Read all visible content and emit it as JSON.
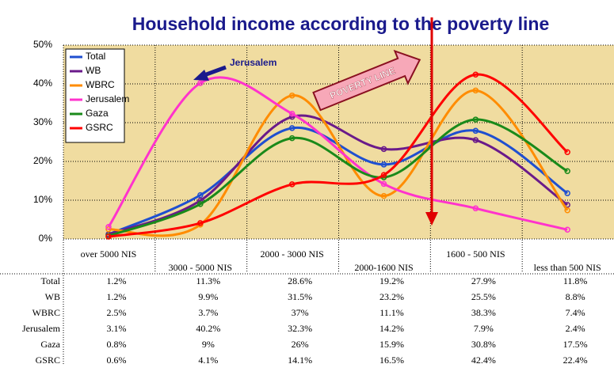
{
  "chart_data": {
    "type": "line",
    "title": "Household income according to the poverty line",
    "categories": [
      "over 5000 NIS",
      "3000 - 5000 NIS",
      "2000 - 3000 NIS",
      "2000-1600 NIS",
      "1600 - 500 NIS",
      "less than 500 NIS"
    ],
    "series": [
      {
        "name": "Total",
        "color": "#1f4fd0",
        "values": [
          1.2,
          11.3,
          28.6,
          19.2,
          27.9,
          11.8
        ],
        "value_labels": [
          "1.2%",
          "11.3%",
          "28.6%",
          "19.2%",
          "27.9%",
          "11.8%"
        ]
      },
      {
        "name": "WB",
        "color": "#6a1a8a",
        "values": [
          1.2,
          9.9,
          31.5,
          23.2,
          25.5,
          8.8
        ],
        "value_labels": [
          "1.2%",
          "9.9%",
          "31.5%",
          "23.2%",
          "25.5%",
          "8.8%"
        ]
      },
      {
        "name": "WBRC",
        "color": "#ff8c00",
        "values": [
          2.5,
          3.7,
          37,
          11.1,
          38.3,
          7.4
        ],
        "value_labels": [
          "2.5%",
          "3.7%",
          "37%",
          "11.1%",
          "38.3%",
          "7.4%"
        ]
      },
      {
        "name": "Jerusalem",
        "color": "#ff33cc",
        "values": [
          3.1,
          40.2,
          32.3,
          14.2,
          7.9,
          2.4
        ],
        "value_labels": [
          "3.1%",
          "40.2%",
          "32.3%",
          "14.2%",
          "7.9%",
          "2.4%"
        ]
      },
      {
        "name": "Gaza",
        "color": "#1a8a1a",
        "values": [
          0.8,
          9,
          26,
          15.9,
          30.8,
          17.5
        ],
        "value_labels": [
          "0.8%",
          "9%",
          "26%",
          "15.9%",
          "30.8%",
          "17.5%"
        ]
      },
      {
        "name": "GSRC",
        "color": "#ff0000",
        "values": [
          0.6,
          4.1,
          14.1,
          16.5,
          42.4,
          22.4
        ],
        "value_labels": [
          "0.6%",
          "4.1%",
          "14.1%",
          "16.5%",
          "42.4%",
          "22.4%"
        ]
      }
    ],
    "ylim": [
      0,
      50
    ],
    "yticks": [
      {
        "value": 0,
        "label": "0%"
      },
      {
        "value": 10,
        "label": "10%"
      },
      {
        "value": 20,
        "label": "20%"
      },
      {
        "value": 30,
        "label": "30%"
      },
      {
        "value": 40,
        "label": "40%"
      },
      {
        "value": 50,
        "label": "50%"
      }
    ],
    "grid": true,
    "legend": "upper left",
    "annotations": [
      "Jerusalem",
      "POVERTY LINE"
    ]
  }
}
